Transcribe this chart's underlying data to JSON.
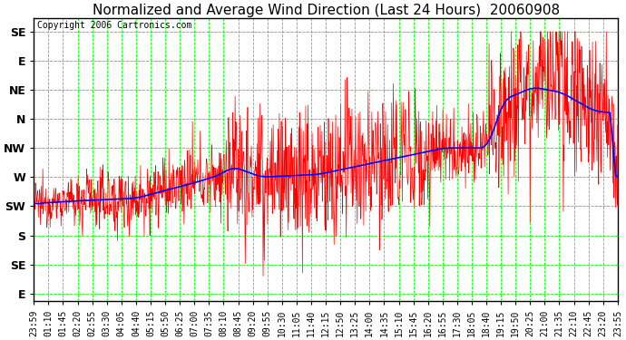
{
  "title": "Normalized and Average Wind Direction (Last 24 Hours)  20060908",
  "copyright": "Copyright 2006 Cartronics.com",
  "background_color": "#ffffff",
  "plot_bg_color": "#ffffff",
  "grid_color": "#00ff00",
  "ytick_labels_top_to_bot": [
    "SE",
    "E",
    "NE",
    "N",
    "NW",
    "W",
    "SW",
    "S",
    "SE",
    "E"
  ],
  "xtick_labels": [
    "23:59",
    "01:10",
    "01:45",
    "02:20",
    "02:55",
    "03:30",
    "04:05",
    "04:40",
    "05:15",
    "05:50",
    "06:25",
    "07:00",
    "07:35",
    "08:10",
    "08:45",
    "09:20",
    "09:55",
    "10:30",
    "11:05",
    "11:40",
    "12:15",
    "12:50",
    "13:25",
    "14:00",
    "14:35",
    "15:10",
    "15:45",
    "16:20",
    "16:55",
    "17:30",
    "18:05",
    "18:40",
    "19:15",
    "19:50",
    "20:25",
    "21:00",
    "21:35",
    "22:10",
    "22:45",
    "23:20",
    "23:55"
  ],
  "red_line_color": "#ff0000",
  "blue_line_color": "#0000ff",
  "title_fontsize": 11,
  "copyright_fontsize": 7,
  "tick_fontsize": 7,
  "ytick_fontsize": 9
}
